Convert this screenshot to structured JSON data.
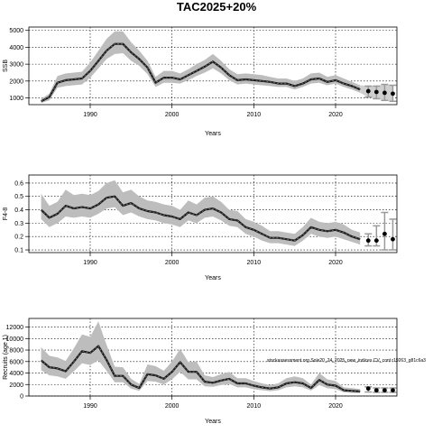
{
  "figure": {
    "title": "TAC2025+20%",
    "annotation": "stockassessment.org Sole20_24_2025_new_indices CV_cont r19263_g81c6a3"
  },
  "chart_data": [
    {
      "type": "line",
      "ylabel": "SSB",
      "xlabel": "Years",
      "xlim": [
        1982.5,
        2027.5
      ],
      "ylim": [
        600,
        5200
      ],
      "xticks": [
        1990,
        2000,
        2010,
        2020
      ],
      "yticks": [
        1000,
        2000,
        3000,
        4000,
        5000
      ],
      "grid": true,
      "x": [
        1984,
        1985,
        1986,
        1987,
        1988,
        1989,
        1990,
        1991,
        1992,
        1993,
        1994,
        1995,
        1996,
        1997,
        1998,
        1999,
        2000,
        2001,
        2002,
        2003,
        2004,
        2005,
        2006,
        2007,
        2008,
        2009,
        2010,
        2011,
        2012,
        2013,
        2014,
        2015,
        2016,
        2017,
        2018,
        2019,
        2020,
        2021,
        2022,
        2023
      ],
      "estimate": [
        800,
        1050,
        1900,
        2050,
        2100,
        2150,
        2600,
        3200,
        3800,
        4200,
        4200,
        3700,
        3300,
        2800,
        1900,
        2200,
        2200,
        2100,
        2350,
        2600,
        2850,
        3150,
        2800,
        2350,
        2050,
        2100,
        2050,
        2000,
        1950,
        1850,
        1850,
        1700,
        1850,
        2100,
        2150,
        1950,
        2050,
        1850,
        1700,
        1500
      ],
      "lower": [
        700,
        850,
        1600,
        1700,
        1750,
        1800,
        2200,
        2750,
        3300,
        3600,
        3650,
        3200,
        2900,
        2400,
        1650,
        1900,
        1900,
        1850,
        2050,
        2300,
        2500,
        2750,
        2450,
        2050,
        1800,
        1850,
        1800,
        1750,
        1700,
        1650,
        1650,
        1500,
        1650,
        1850,
        1900,
        1750,
        1850,
        1650,
        1500,
        1300
      ],
      "upper": [
        950,
        1250,
        2300,
        2450,
        2500,
        2550,
        3100,
        3800,
        4500,
        4950,
        4950,
        4300,
        3800,
        3200,
        2250,
        2600,
        2600,
        2450,
        2700,
        3000,
        3250,
        3600,
        3200,
        2700,
        2400,
        2450,
        2400,
        2350,
        2250,
        2150,
        2150,
        2000,
        2150,
        2450,
        2500,
        2250,
        2350,
        2150,
        1950,
        1750
      ],
      "forecast": {
        "x": [
          2024,
          2025,
          2026,
          2027
        ],
        "estimate": [
          1400,
          1350,
          1300,
          1250
        ],
        "lower": [
          1050,
          950,
          850,
          800
        ],
        "upper": [
          1700,
          1700,
          1800,
          1750
        ]
      }
    },
    {
      "type": "line",
      "ylabel": "F4-8",
      "xlabel": "Years",
      "xlim": [
        1982.5,
        2027.5
      ],
      "ylim": [
        0.08,
        0.66
      ],
      "xticks": [
        1990,
        2000,
        2010,
        2020
      ],
      "yticks": [
        0.1,
        0.2,
        0.3,
        0.4,
        0.5,
        0.6
      ],
      "grid": true,
      "x": [
        1984,
        1985,
        1986,
        1987,
        1988,
        1989,
        1990,
        1991,
        1992,
        1993,
        1994,
        1995,
        1996,
        1997,
        1998,
        1999,
        2000,
        2001,
        2002,
        2003,
        2004,
        2005,
        2006,
        2007,
        2008,
        2009,
        2010,
        2011,
        2012,
        2013,
        2014,
        2015,
        2016,
        2017,
        2018,
        2019,
        2020,
        2021,
        2022,
        2023
      ],
      "estimate": [
        0.4,
        0.34,
        0.37,
        0.43,
        0.41,
        0.42,
        0.41,
        0.44,
        0.49,
        0.5,
        0.43,
        0.45,
        0.41,
        0.39,
        0.38,
        0.36,
        0.35,
        0.33,
        0.38,
        0.36,
        0.4,
        0.41,
        0.38,
        0.33,
        0.32,
        0.27,
        0.25,
        0.22,
        0.19,
        0.19,
        0.18,
        0.17,
        0.21,
        0.27,
        0.25,
        0.24,
        0.25,
        0.23,
        0.2,
        0.18
      ],
      "lower": [
        0.33,
        0.27,
        0.3,
        0.35,
        0.34,
        0.35,
        0.34,
        0.37,
        0.41,
        0.42,
        0.36,
        0.38,
        0.35,
        0.33,
        0.32,
        0.3,
        0.29,
        0.27,
        0.32,
        0.3,
        0.34,
        0.35,
        0.32,
        0.28,
        0.27,
        0.22,
        0.2,
        0.17,
        0.15,
        0.15,
        0.14,
        0.13,
        0.17,
        0.22,
        0.2,
        0.19,
        0.2,
        0.18,
        0.16,
        0.14
      ],
      "upper": [
        0.52,
        0.43,
        0.46,
        0.55,
        0.51,
        0.52,
        0.51,
        0.54,
        0.6,
        0.62,
        0.53,
        0.55,
        0.5,
        0.47,
        0.46,
        0.44,
        0.43,
        0.4,
        0.47,
        0.44,
        0.49,
        0.5,
        0.46,
        0.4,
        0.39,
        0.33,
        0.31,
        0.28,
        0.24,
        0.24,
        0.23,
        0.22,
        0.27,
        0.34,
        0.31,
        0.3,
        0.31,
        0.29,
        0.25,
        0.23
      ],
      "forecast": {
        "x": [
          2024,
          2025,
          2026,
          2027
        ],
        "estimate": [
          0.17,
          0.17,
          0.22,
          0.18
        ],
        "lower": [
          0.13,
          0.13,
          0.1,
          0.1
        ],
        "upper": [
          0.22,
          0.28,
          0.38,
          0.33
        ]
      }
    },
    {
      "type": "line",
      "ylabel": "Recruits (age 1)",
      "xlabel": "Years",
      "xlim": [
        1982.5,
        2027.5
      ],
      "ylim": [
        0,
        13500
      ],
      "xticks": [
        1990,
        2000,
        2010,
        2020
      ],
      "yticks": [
        0,
        2000,
        4000,
        6000,
        8000,
        10000,
        12000
      ],
      "grid": true,
      "x": [
        1984,
        1985,
        1986,
        1987,
        1988,
        1989,
        1990,
        1991,
        1992,
        1993,
        1994,
        1995,
        1996,
        1997,
        1998,
        1999,
        2000,
        2001,
        2002,
        2003,
        2004,
        2005,
        2006,
        2007,
        2008,
        2009,
        2010,
        2011,
        2012,
        2013,
        2014,
        2015,
        2016,
        2017,
        2018,
        2019,
        2020,
        2021,
        2022,
        2023
      ],
      "estimate": [
        6200,
        5000,
        4800,
        4300,
        6000,
        7800,
        7500,
        8700,
        6300,
        3500,
        3500,
        2000,
        1400,
        3800,
        3600,
        3000,
        4200,
        5900,
        4200,
        4200,
        2500,
        2300,
        2700,
        3000,
        2200,
        2200,
        1800,
        1500,
        1300,
        1500,
        2200,
        2400,
        2200,
        1400,
        2800,
        2000,
        1800,
        1000,
        900,
        800
      ],
      "lower": [
        4500,
        3600,
        3400,
        3000,
        4300,
        5700,
        5400,
        6200,
        4400,
        2400,
        2400,
        1300,
        900,
        2600,
        2500,
        2000,
        2900,
        4200,
        2900,
        2900,
        1700,
        1600,
        1900,
        2100,
        1500,
        1500,
        1200,
        1000,
        850,
        1000,
        1500,
        1700,
        1500,
        950,
        1900,
        1350,
        1200,
        650,
        550,
        500
      ],
      "upper": [
        8500,
        7000,
        6700,
        6100,
        8300,
        10700,
        10300,
        13000,
        8900,
        5100,
        5000,
        3000,
        2100,
        5500,
        5200,
        4400,
        6000,
        8200,
        5900,
        6000,
        3600,
        3300,
        3800,
        4200,
        3100,
        3100,
        2600,
        2200,
        1900,
        2200,
        3100,
        3400,
        3100,
        2000,
        4000,
        2900,
        2600,
        1500,
        1400,
        1200
      ],
      "forecast": {
        "x": [
          2024,
          2025,
          2026,
          2027
        ],
        "estimate": [
          1300,
          1000,
          1000,
          1000
        ],
        "lower": [
          700,
          650,
          650,
          650
        ],
        "upper": [
          1600,
          1400,
          1400,
          1400
        ]
      }
    }
  ]
}
